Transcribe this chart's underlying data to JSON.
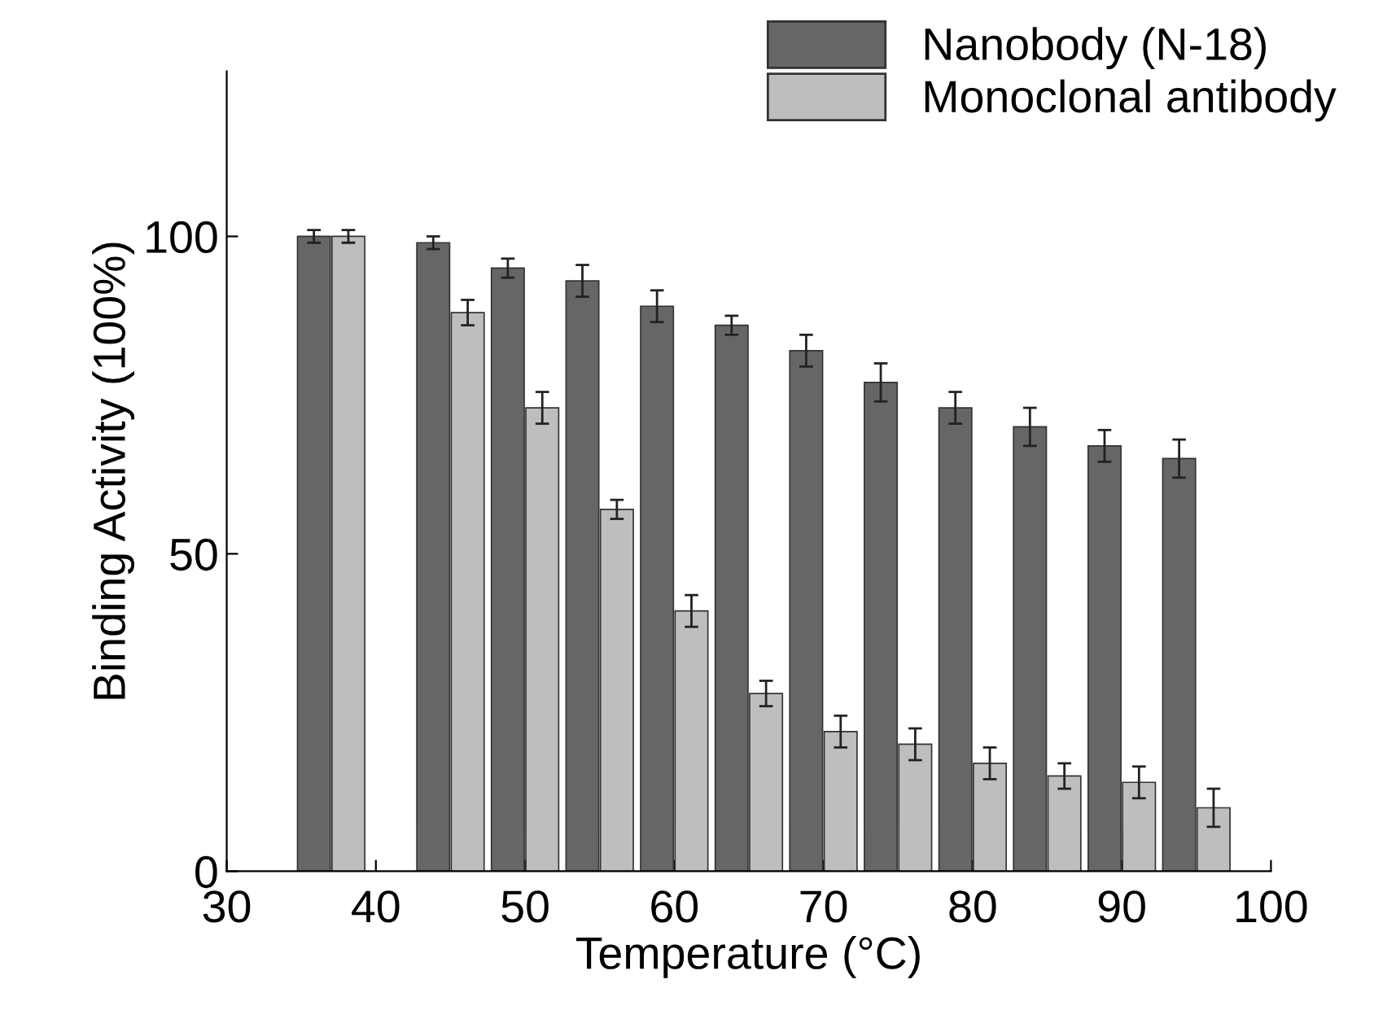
{
  "chart_data": {
    "type": "bar",
    "xlabel": "Temperature (°C)",
    "ylabel": "Binding Activity (100%)",
    "x": [
      37,
      45,
      50,
      55,
      60,
      65,
      70,
      75,
      80,
      85,
      90,
      95
    ],
    "series": [
      {
        "name": "Nanobody (N-18)",
        "color": "#666666",
        "values": [
          100,
          99,
          95,
          93,
          89,
          86,
          82,
          77,
          73,
          70,
          67,
          65
        ],
        "errors": [
          1,
          1,
          1.5,
          2.5,
          2.5,
          1.5,
          2.5,
          3,
          2.5,
          3,
          2.5,
          3
        ]
      },
      {
        "name": "Monoclonal antibody",
        "color": "#bebebe",
        "values": [
          100,
          88,
          73,
          57,
          41,
          28,
          22,
          20,
          17,
          15,
          14,
          10
        ],
        "errors": [
          1,
          2,
          2.5,
          1.5,
          2.5,
          2,
          2.5,
          2.5,
          2.5,
          2,
          2.5,
          3
        ]
      }
    ],
    "xlim": [
      30,
      100
    ],
    "xticks": [
      30,
      40,
      50,
      60,
      70,
      80,
      90,
      100
    ],
    "ylim": [
      0,
      126
    ],
    "yticks": [
      0,
      50,
      100
    ],
    "grid": false,
    "legend": "top right"
  }
}
